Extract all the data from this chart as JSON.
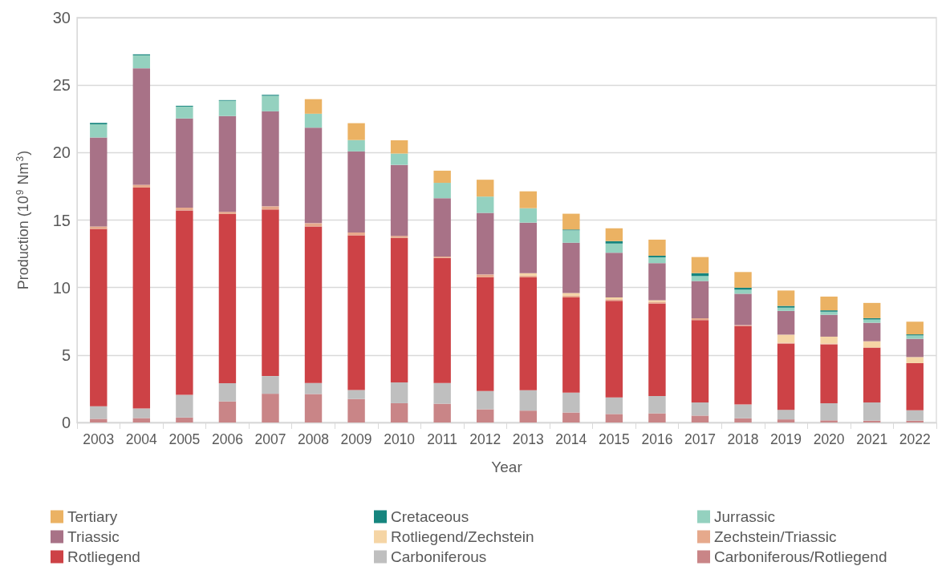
{
  "chart_data": {
    "type": "bar",
    "stacked": true,
    "xlabel": "Year",
    "ylabel": "Production (10$^{9}$ Nm$^{3}$)",
    "categories": [
      "2003",
      "2004",
      "2005",
      "2006",
      "2007",
      "2008",
      "2009",
      "2010",
      "2011",
      "2012",
      "2013",
      "2014",
      "2015",
      "2016",
      "2017",
      "2018",
      "2019",
      "2020",
      "2021",
      "2022"
    ],
    "series": [
      {
        "name": "Carboniferous/Rotliegend",
        "color": "#c98587",
        "values": [
          0.27,
          0.33,
          0.37,
          1.56,
          2.13,
          2.11,
          1.74,
          1.43,
          1.39,
          0.98,
          0.88,
          0.74,
          0.63,
          0.68,
          0.51,
          0.31,
          0.23,
          0.16,
          0.14,
          0.14
        ]
      },
      {
        "name": "Carboniferous",
        "color": "#bfbfbf",
        "values": [
          0.94,
          0.71,
          1.68,
          1.35,
          1.31,
          0.82,
          0.67,
          1.54,
          1.54,
          1.35,
          1.51,
          1.47,
          1.23,
          1.28,
          0.98,
          1.02,
          0.71,
          1.27,
          1.35,
          0.76
        ]
      },
      {
        "name": "Rotliegend",
        "color": "#cd4246",
        "values": [
          13.13,
          16.37,
          13.67,
          12.54,
          12.34,
          11.6,
          11.46,
          10.7,
          9.27,
          8.43,
          8.37,
          7.06,
          7.16,
          6.86,
          6.1,
          5.83,
          4.91,
          4.36,
          4.06,
          3.5
        ]
      },
      {
        "name": "Zechstein/Triassic",
        "color": "#e6a98c",
        "values": [
          0.19,
          0.21,
          0.2,
          0.16,
          0.24,
          0.24,
          0.21,
          0.16,
          0.1,
          0.21,
          0.13,
          0.14,
          0.11,
          0.12,
          0.14,
          0.06,
          0.06,
          0.06,
          0,
          0
        ]
      },
      {
        "name": "Rotliegend/Zechstein",
        "color": "#f5d5a5",
        "values": [
          0,
          0,
          0,
          0,
          0,
          0,
          0,
          0,
          0,
          0,
          0.18,
          0.19,
          0.14,
          0.12,
          0,
          0,
          0.6,
          0.51,
          0.47,
          0.45
        ]
      },
      {
        "name": "Triassic",
        "color": "#a87287",
        "values": [
          6.59,
          8.63,
          6.61,
          7.1,
          7.04,
          7.08,
          6.01,
          5.26,
          4.32,
          4.56,
          3.74,
          3.72,
          3.31,
          2.75,
          2.75,
          2.32,
          1.76,
          1.62,
          1.37,
          1.35
        ]
      },
      {
        "name": "Jurrassic",
        "color": "#94d1bf",
        "values": [
          0.98,
          0.96,
          0.88,
          1.13,
          1.15,
          1.03,
          0.84,
          0.84,
          1.14,
          1.21,
          1.07,
          0.92,
          0.68,
          0.43,
          0.37,
          0.3,
          0.24,
          0.23,
          0.24,
          0.25
        ]
      },
      {
        "name": "Cretaceous",
        "color": "#16857e",
        "values": [
          0.1,
          0.07,
          0.06,
          0.05,
          0.07,
          0,
          0,
          0,
          0,
          0,
          0,
          0.06,
          0.18,
          0.12,
          0.22,
          0.15,
          0.13,
          0.1,
          0.1,
          0.08
        ]
      },
      {
        "name": "Tertiary",
        "color": "#ebb263",
        "values": [
          0,
          0,
          0,
          0,
          0,
          1.08,
          1.25,
          0.98,
          0.9,
          1.25,
          1.25,
          1.17,
          0.95,
          1.19,
          1.19,
          1.16,
          1.14,
          1.02,
          1.13,
          0.94
        ]
      }
    ],
    "ylim": [
      0,
      30
    ],
    "yticks": [
      0,
      5,
      10,
      15,
      20,
      25,
      30
    ],
    "grid": "y",
    "legend": "bottom"
  }
}
